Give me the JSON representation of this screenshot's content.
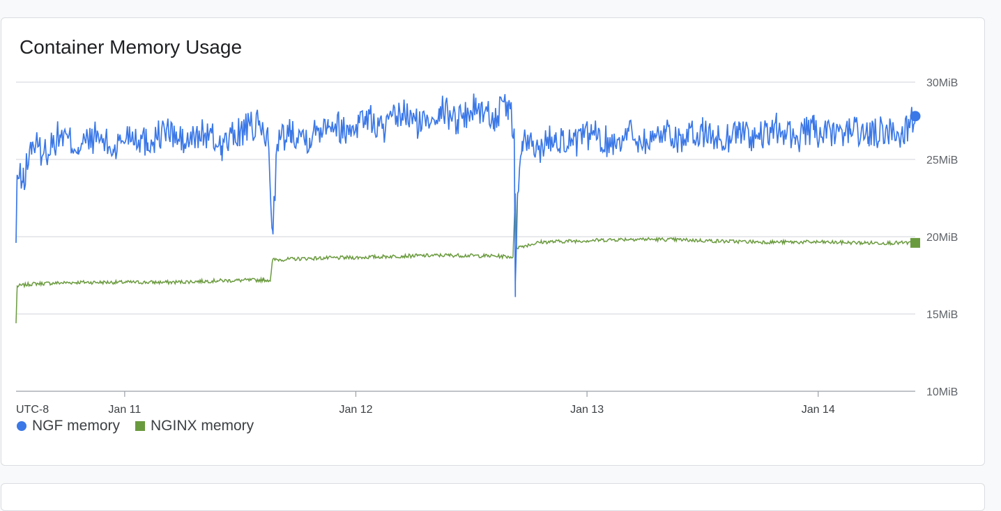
{
  "card": {
    "title": "Container Memory Usage"
  },
  "colors": {
    "ngf": "#3b78e7",
    "nginx": "#6a9a3e",
    "grid": "#dadce0",
    "axis": "#9aa0a6"
  },
  "legend": [
    {
      "label": "NGF memory",
      "shape": "circle"
    },
    {
      "label": "NGINX memory",
      "shape": "square"
    }
  ],
  "chart_data": {
    "type": "line",
    "title": "Container Memory Usage",
    "timezone_label": "UTC-8",
    "y_unit": "MiB",
    "ylim": [
      10,
      30
    ],
    "y_ticks": [
      {
        "value": 30,
        "label": "30MiB"
      },
      {
        "value": 25,
        "label": "25MiB"
      },
      {
        "value": 20,
        "label": "20MiB"
      },
      {
        "value": 15,
        "label": "15MiB"
      },
      {
        "value": 10,
        "label": "10MiB"
      }
    ],
    "xlim": [
      "Jan 10 19:00",
      "Jan 14 23:00"
    ],
    "x_ticks": [
      {
        "value": 11.0,
        "label": "Jan 11"
      },
      {
        "value": 12.0,
        "label": "Jan 12"
      },
      {
        "value": 13.0,
        "label": "Jan 13"
      },
      {
        "value": 14.0,
        "label": "Jan 14"
      }
    ],
    "grid": true,
    "legend_position": "bottom-left",
    "series": [
      {
        "name": "NGF memory",
        "marker": "circle",
        "points": [
          [
            10.53,
            19.6
          ],
          [
            10.535,
            24.0
          ],
          [
            10.56,
            23.5
          ],
          [
            10.6,
            26.1
          ],
          [
            10.65,
            25.4
          ],
          [
            10.72,
            26.6
          ],
          [
            10.8,
            25.8
          ],
          [
            10.88,
            26.5
          ],
          [
            10.95,
            25.6
          ],
          [
            11.02,
            26.8
          ],
          [
            11.1,
            26.1
          ],
          [
            11.18,
            26.9
          ],
          [
            11.26,
            26.0
          ],
          [
            11.34,
            26.7
          ],
          [
            11.42,
            25.9
          ],
          [
            11.5,
            26.8
          ],
          [
            11.58,
            27.2
          ],
          [
            11.62,
            26.3
          ],
          [
            11.64,
            20.4
          ],
          [
            11.66,
            26.0
          ],
          [
            11.72,
            26.9
          ],
          [
            11.8,
            26.4
          ],
          [
            11.88,
            27.6
          ],
          [
            11.96,
            26.8
          ],
          [
            12.04,
            27.8
          ],
          [
            12.12,
            26.9
          ],
          [
            12.2,
            28.0
          ],
          [
            12.28,
            27.2
          ],
          [
            12.36,
            28.3
          ],
          [
            12.44,
            27.6
          ],
          [
            12.52,
            28.4
          ],
          [
            12.6,
            27.7
          ],
          [
            12.66,
            28.5
          ],
          [
            12.685,
            27.0
          ],
          [
            12.69,
            16.1
          ],
          [
            12.7,
            22.8
          ],
          [
            12.72,
            26.2
          ],
          [
            12.78,
            25.6
          ],
          [
            12.86,
            26.6
          ],
          [
            12.94,
            25.9
          ],
          [
            13.02,
            26.7
          ],
          [
            13.1,
            26.0
          ],
          [
            13.18,
            26.8
          ],
          [
            13.26,
            26.1
          ],
          [
            13.34,
            26.9
          ],
          [
            13.42,
            26.2
          ],
          [
            13.5,
            26.8
          ],
          [
            13.58,
            26.2
          ],
          [
            13.66,
            26.9
          ],
          [
            13.74,
            26.3
          ],
          [
            13.82,
            27.0
          ],
          [
            13.9,
            26.4
          ],
          [
            13.98,
            26.9
          ],
          [
            14.06,
            26.4
          ],
          [
            14.14,
            27.0
          ],
          [
            14.22,
            26.5
          ],
          [
            14.3,
            26.9
          ],
          [
            14.36,
            26.6
          ],
          [
            14.42,
            27.8
          ]
        ]
      },
      {
        "name": "NGINX memory",
        "marker": "square",
        "points": [
          [
            10.53,
            14.4
          ],
          [
            10.535,
            16.8
          ],
          [
            10.6,
            16.95
          ],
          [
            10.8,
            17.05
          ],
          [
            11.0,
            17.05
          ],
          [
            11.2,
            17.05
          ],
          [
            11.4,
            17.15
          ],
          [
            11.6,
            17.2
          ],
          [
            11.63,
            17.2
          ],
          [
            11.64,
            18.5
          ],
          [
            11.8,
            18.6
          ],
          [
            12.0,
            18.65
          ],
          [
            12.2,
            18.75
          ],
          [
            12.4,
            18.8
          ],
          [
            12.6,
            18.75
          ],
          [
            12.68,
            18.7
          ],
          [
            12.69,
            22.8
          ],
          [
            12.695,
            19.3
          ],
          [
            12.8,
            19.65
          ],
          [
            13.0,
            19.75
          ],
          [
            13.2,
            19.85
          ],
          [
            13.4,
            19.8
          ],
          [
            13.6,
            19.7
          ],
          [
            13.8,
            19.65
          ],
          [
            14.0,
            19.65
          ],
          [
            14.2,
            19.6
          ],
          [
            14.42,
            19.6
          ]
        ]
      }
    ]
  }
}
